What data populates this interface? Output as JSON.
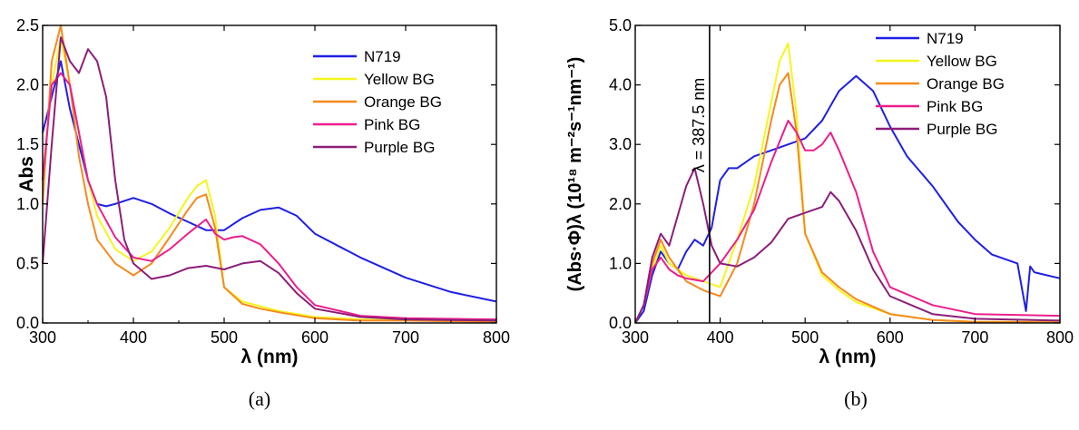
{
  "chart_data": [
    {
      "type": "line",
      "panel_label": "(a)",
      "xlabel": "λ (nm)",
      "ylabel": "Abs",
      "xlim": [
        300,
        800
      ],
      "ylim": [
        0,
        2.5
      ],
      "xticks": [
        "300",
        "400",
        "500",
        "600",
        "700",
        "800"
      ],
      "yticks": [
        "0.0",
        "0.5",
        "1.0",
        "1.5",
        "2.0",
        "2.5"
      ],
      "legend": "top-right",
      "series": [
        {
          "name": "N719",
          "color": "#1f1fe6",
          "x": [
            300,
            310,
            320,
            330,
            340,
            350,
            360,
            370,
            380,
            400,
            420,
            440,
            460,
            480,
            500,
            520,
            540,
            560,
            580,
            600,
            650,
            700,
            750,
            800
          ],
          "y": [
            1.6,
            1.9,
            2.2,
            1.8,
            1.5,
            1.2,
            1.0,
            0.98,
            1.0,
            1.05,
            1.0,
            0.92,
            0.85,
            0.78,
            0.78,
            0.88,
            0.95,
            0.97,
            0.9,
            0.75,
            0.55,
            0.38,
            0.26,
            0.18
          ]
        },
        {
          "name": "Yellow BG",
          "color": "#f5f51e",
          "x": [
            300,
            310,
            320,
            330,
            340,
            350,
            360,
            380,
            400,
            420,
            440,
            460,
            470,
            480,
            490,
            500,
            520,
            540,
            560,
            600,
            650,
            700,
            800
          ],
          "y": [
            1.2,
            2.0,
            2.4,
            2.0,
            1.6,
            1.2,
            0.9,
            0.62,
            0.52,
            0.6,
            0.8,
            1.05,
            1.15,
            1.2,
            0.9,
            0.3,
            0.18,
            0.14,
            0.1,
            0.05,
            0.03,
            0.02,
            0.02
          ]
        },
        {
          "name": "Orange BG",
          "color": "#f58a1e",
          "x": [
            300,
            310,
            320,
            330,
            340,
            350,
            360,
            380,
            400,
            420,
            440,
            460,
            470,
            480,
            490,
            500,
            520,
            540,
            560,
            600,
            650,
            700,
            800
          ],
          "y": [
            1.0,
            2.2,
            2.5,
            2.0,
            1.4,
            1.0,
            0.7,
            0.5,
            0.4,
            0.5,
            0.72,
            0.95,
            1.05,
            1.08,
            0.8,
            0.3,
            0.16,
            0.12,
            0.09,
            0.04,
            0.02,
            0.02,
            0.01
          ]
        },
        {
          "name": "Pink BG",
          "color": "#ec1e8c",
          "x": [
            300,
            310,
            320,
            330,
            340,
            350,
            360,
            380,
            400,
            420,
            440,
            460,
            480,
            490,
            500,
            510,
            520,
            540,
            560,
            580,
            600,
            650,
            700,
            800
          ],
          "y": [
            1.2,
            2.0,
            2.1,
            2.0,
            1.6,
            1.2,
            1.0,
            0.72,
            0.55,
            0.52,
            0.62,
            0.75,
            0.87,
            0.75,
            0.7,
            0.72,
            0.73,
            0.66,
            0.5,
            0.3,
            0.15,
            0.06,
            0.04,
            0.03
          ]
        },
        {
          "name": "Purple BG",
          "color": "#8c1e78",
          "x": [
            300,
            310,
            320,
            330,
            340,
            350,
            360,
            370,
            380,
            390,
            400,
            420,
            440,
            460,
            480,
            500,
            520,
            540,
            560,
            580,
            600,
            650,
            700,
            800
          ],
          "y": [
            0.5,
            1.5,
            2.4,
            2.2,
            2.1,
            2.3,
            2.2,
            1.9,
            1.2,
            0.7,
            0.5,
            0.37,
            0.4,
            0.46,
            0.48,
            0.45,
            0.5,
            0.52,
            0.42,
            0.25,
            0.12,
            0.05,
            0.03,
            0.02
          ]
        }
      ]
    },
    {
      "type": "line",
      "panel_label": "(b)",
      "xlabel": "λ (nm)",
      "ylabel": "(Abs·Φ)λ (10¹⁸ m⁻²s⁻¹nm⁻¹)",
      "xlim": [
        300,
        800
      ],
      "ylim": [
        0,
        5.0
      ],
      "xticks": [
        "300",
        "400",
        "500",
        "600",
        "700",
        "800"
      ],
      "yticks": [
        "0.0",
        "1.0",
        "2.0",
        "3.0",
        "4.0",
        "5.0"
      ],
      "legend": "top-right",
      "annotation": {
        "text": "λ = 387.5 nm",
        "x": 387.5
      },
      "series": [
        {
          "name": "N719",
          "color": "#1f1fe6",
          "x": [
            300,
            310,
            320,
            330,
            340,
            350,
            360,
            370,
            380,
            390,
            395,
            400,
            410,
            420,
            440,
            460,
            480,
            500,
            520,
            540,
            560,
            580,
            600,
            620,
            650,
            680,
            700,
            720,
            750,
            760,
            765,
            770,
            800
          ],
          "y": [
            0.0,
            0.2,
            0.8,
            1.2,
            1.0,
            0.9,
            1.2,
            1.4,
            1.3,
            1.6,
            2.0,
            2.4,
            2.6,
            2.6,
            2.8,
            2.9,
            3.0,
            3.1,
            3.4,
            3.9,
            4.15,
            3.9,
            3.3,
            2.8,
            2.3,
            1.7,
            1.4,
            1.15,
            1.0,
            0.2,
            0.95,
            0.85,
            0.75
          ]
        },
        {
          "name": "Yellow BG",
          "color": "#f5f51e",
          "x": [
            300,
            310,
            320,
            330,
            340,
            350,
            360,
            380,
            400,
            420,
            440,
            460,
            470,
            480,
            490,
            500,
            520,
            540,
            560,
            600,
            650,
            700,
            800
          ],
          "y": [
            0.0,
            0.3,
            0.9,
            1.3,
            1.0,
            0.9,
            0.8,
            0.7,
            0.6,
            1.4,
            2.3,
            3.7,
            4.4,
            4.7,
            3.5,
            1.5,
            0.8,
            0.55,
            0.35,
            0.15,
            0.05,
            0.02,
            0.02
          ]
        },
        {
          "name": "Orange BG",
          "color": "#f58a1e",
          "x": [
            300,
            310,
            320,
            330,
            340,
            350,
            360,
            380,
            400,
            420,
            440,
            460,
            470,
            480,
            490,
            500,
            520,
            540,
            560,
            600,
            650,
            700,
            800
          ],
          "y": [
            0.0,
            0.3,
            1.0,
            1.4,
            1.1,
            0.9,
            0.7,
            0.55,
            0.45,
            1.0,
            2.0,
            3.4,
            4.0,
            4.2,
            3.2,
            1.5,
            0.85,
            0.6,
            0.4,
            0.15,
            0.05,
            0.02,
            0.01
          ]
        },
        {
          "name": "Pink BG",
          "color": "#ec1e8c",
          "x": [
            300,
            310,
            320,
            330,
            340,
            350,
            360,
            380,
            400,
            420,
            440,
            460,
            480,
            490,
            500,
            510,
            520,
            530,
            540,
            560,
            580,
            600,
            650,
            700,
            800
          ],
          "y": [
            0.0,
            0.3,
            0.9,
            1.1,
            0.9,
            0.8,
            0.75,
            0.7,
            1.0,
            1.4,
            1.9,
            2.7,
            3.4,
            3.2,
            2.9,
            2.9,
            3.0,
            3.2,
            2.9,
            2.2,
            1.2,
            0.6,
            0.3,
            0.15,
            0.12
          ]
        },
        {
          "name": "Purple BG",
          "color": "#8c1e78",
          "x": [
            300,
            310,
            320,
            330,
            340,
            350,
            360,
            370,
            380,
            390,
            400,
            420,
            440,
            460,
            480,
            500,
            520,
            530,
            540,
            560,
            580,
            600,
            650,
            700,
            800
          ],
          "y": [
            0.0,
            0.3,
            1.1,
            1.5,
            1.3,
            1.8,
            2.3,
            2.6,
            2.0,
            1.3,
            1.0,
            0.95,
            1.1,
            1.35,
            1.75,
            1.85,
            1.95,
            2.2,
            2.05,
            1.55,
            0.9,
            0.45,
            0.15,
            0.07,
            0.04
          ]
        }
      ]
    }
  ]
}
